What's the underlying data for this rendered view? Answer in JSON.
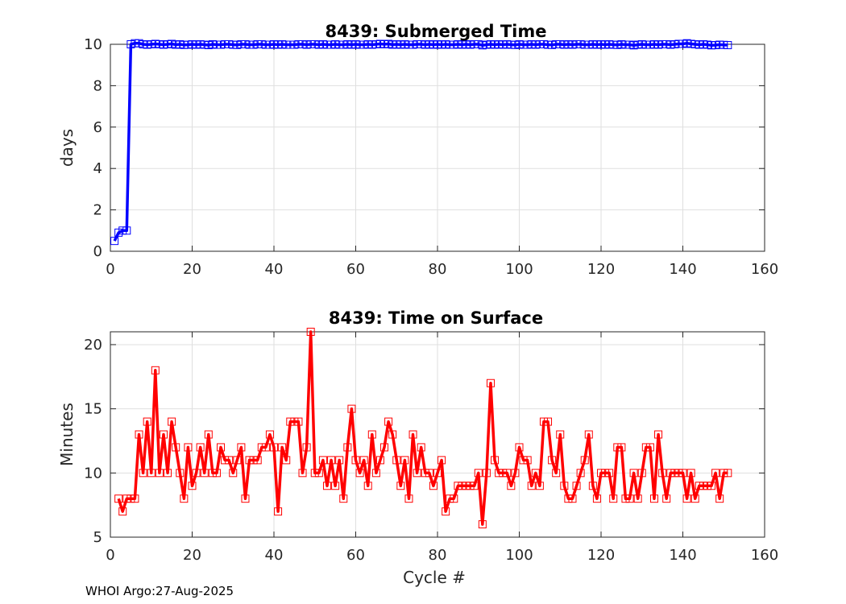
{
  "chart_data": [
    {
      "type": "line",
      "title": "8439: Submerged Time",
      "xlabel": "",
      "ylabel": "days",
      "xlim": [
        0,
        160
      ],
      "ylim": [
        0,
        10
      ],
      "xticks": [
        "0",
        "20",
        "40",
        "60",
        "80",
        "100",
        "120",
        "140",
        "160"
      ],
      "yticks": [
        "0",
        "2",
        "4",
        "6",
        "8",
        "10"
      ],
      "grid": true,
      "marker": "square",
      "color": "#0000ff",
      "series": [
        {
          "x": [
            1,
            2,
            3,
            4,
            5,
            6,
            7,
            8,
            9,
            10,
            11,
            12,
            13,
            14,
            15,
            16,
            17,
            18,
            19,
            20,
            21,
            22,
            23,
            24,
            25,
            26,
            27,
            28,
            29,
            30,
            31,
            32,
            33,
            34,
            35,
            36,
            37,
            38,
            39,
            40,
            41,
            42,
            43,
            44,
            45,
            46,
            47,
            48,
            49,
            50,
            51,
            52,
            53,
            54,
            55,
            56,
            57,
            58,
            59,
            60,
            61,
            62,
            63,
            64,
            65,
            66,
            67,
            68,
            69,
            70,
            71,
            72,
            73,
            74,
            75,
            76,
            77,
            78,
            79,
            80,
            81,
            82,
            83,
            84,
            85,
            86,
            87,
            88,
            89,
            90,
            91,
            92,
            93,
            94,
            95,
            96,
            97,
            98,
            99,
            100,
            101,
            102,
            103,
            104,
            105,
            106,
            107,
            108,
            109,
            110,
            111,
            112,
            113,
            114,
            115,
            116,
            117,
            118,
            119,
            120,
            121,
            122,
            123,
            124,
            125,
            126,
            127,
            128,
            129,
            130,
            131,
            132,
            133,
            134,
            135,
            136,
            137,
            138,
            139,
            140,
            141,
            142,
            143,
            144,
            145,
            146,
            147,
            148,
            149,
            150,
            151
          ],
          "values": [
            0.5,
            0.9,
            1.0,
            1.0,
            10.0,
            10.05,
            10.05,
            10.0,
            9.98,
            10.0,
            10.02,
            10.0,
            9.98,
            10.0,
            10.02,
            9.98,
            10.0,
            9.97,
            9.98,
            10.0,
            9.98,
            10.0,
            9.98,
            9.96,
            10.0,
            9.98,
            9.98,
            10.0,
            10.0,
            9.98,
            9.97,
            10.0,
            10.0,
            9.98,
            9.98,
            10.0,
            10.0,
            9.98,
            9.98,
            10.0,
            9.98,
            10.0,
            9.98,
            9.98,
            9.98,
            10.0,
            10.0,
            9.98,
            10.0,
            10.0,
            9.98,
            10.0,
            9.98,
            9.98,
            10.0,
            9.98,
            9.98,
            10.0,
            9.98,
            10.0,
            9.98,
            9.98,
            10.0,
            9.98,
            10.0,
            10.02,
            10.0,
            10.02,
            9.98,
            10.0,
            9.98,
            10.0,
            9.98,
            9.98,
            10.0,
            10.0,
            9.98,
            10.0,
            9.98,
            10.0,
            9.98,
            10.0,
            9.98,
            9.98,
            10.0,
            9.98,
            10.0,
            9.98,
            10.0,
            10.0,
            9.95,
            9.98,
            10.0,
            9.98,
            10.0,
            9.98,
            10.0,
            9.98,
            9.97,
            10.0,
            9.98,
            9.98,
            10.0,
            9.98,
            10.0,
            10.0,
            9.98,
            9.97,
            10.0,
            10.0,
            9.98,
            10.0,
            9.98,
            10.0,
            10.0,
            9.98,
            9.98,
            10.0,
            9.98,
            10.0,
            9.98,
            10.0,
            9.98,
            9.97,
            10.0,
            9.98,
            9.98,
            9.95,
            9.98,
            10.0,
            9.98,
            9.98,
            10.0,
            9.98,
            10.0,
            10.0,
            9.98,
            10.0,
            10.02,
            10.02,
            10.05,
            10.02,
            10.0,
            9.98,
            10.0,
            9.98,
            9.95,
            9.96,
            9.98,
            9.97,
            9.96
          ]
        }
      ]
    },
    {
      "type": "line",
      "title": "8439: Time on Surface",
      "xlabel": "Cycle #",
      "ylabel": "Minutes",
      "xlim": [
        0,
        160
      ],
      "ylim": [
        5,
        21
      ],
      "xticks": [
        "0",
        "20",
        "40",
        "60",
        "80",
        "100",
        "120",
        "140",
        "160"
      ],
      "yticks": [
        "5",
        "10",
        "15",
        "20"
      ],
      "grid": true,
      "marker": "square",
      "color": "#ff0000",
      "series": [
        {
          "x": [
            2,
            3,
            4,
            5,
            6,
            7,
            8,
            9,
            10,
            11,
            12,
            13,
            14,
            15,
            16,
            17,
            18,
            19,
            20,
            21,
            22,
            23,
            24,
            25,
            26,
            27,
            28,
            29,
            30,
            31,
            32,
            33,
            34,
            35,
            36,
            37,
            38,
            39,
            40,
            41,
            42,
            43,
            44,
            45,
            46,
            47,
            48,
            49,
            50,
            51,
            52,
            53,
            54,
            55,
            56,
            57,
            58,
            59,
            60,
            61,
            62,
            63,
            64,
            65,
            66,
            67,
            68,
            69,
            70,
            71,
            72,
            73,
            74,
            75,
            76,
            77,
            78,
            79,
            80,
            81,
            82,
            83,
            84,
            85,
            86,
            87,
            88,
            89,
            90,
            91,
            92,
            93,
            94,
            95,
            96,
            97,
            98,
            99,
            100,
            101,
            102,
            103,
            104,
            105,
            106,
            107,
            108,
            109,
            110,
            111,
            112,
            113,
            114,
            115,
            116,
            117,
            118,
            119,
            120,
            121,
            122,
            123,
            124,
            125,
            126,
            127,
            128,
            129,
            130,
            131,
            132,
            133,
            134,
            135,
            136,
            137,
            138,
            139,
            140,
            141,
            142,
            143,
            144,
            145,
            146,
            147,
            148,
            149,
            150,
            151
          ],
          "values": [
            8,
            7,
            8,
            8,
            8,
            13,
            10,
            14,
            10,
            18,
            10,
            13,
            10,
            14,
            12,
            10,
            8,
            12,
            9,
            10,
            12,
            10,
            13,
            10,
            10,
            12,
            11,
            11,
            10,
            11,
            12,
            8,
            11,
            11,
            11,
            12,
            12,
            13,
            12,
            7,
            12,
            11,
            14,
            14,
            14,
            10,
            12,
            21,
            10,
            10,
            11,
            9,
            11,
            9,
            11,
            8,
            12,
            15,
            11,
            10,
            11,
            9,
            13,
            10,
            11,
            12,
            14,
            13,
            11,
            9,
            11,
            8,
            13,
            10,
            12,
            10,
            10,
            9,
            10,
            11,
            7,
            8,
            8,
            9,
            9,
            9,
            9,
            9,
            10,
            6,
            10,
            17,
            11,
            10,
            10,
            10,
            9,
            10,
            12,
            11,
            11,
            9,
            10,
            9,
            14,
            14,
            11,
            10,
            13,
            9,
            8,
            8,
            9,
            10,
            11,
            13,
            9,
            8,
            10,
            10,
            10,
            8,
            12,
            12,
            8,
            8,
            10,
            8,
            10,
            12,
            12,
            8,
            13,
            10,
            8,
            10,
            10,
            10,
            10,
            8,
            10,
            8,
            9,
            9,
            9,
            9,
            10,
            8,
            10,
            10
          ]
        }
      ]
    }
  ],
  "footer": "WHOI Argo:27-Aug-2025"
}
